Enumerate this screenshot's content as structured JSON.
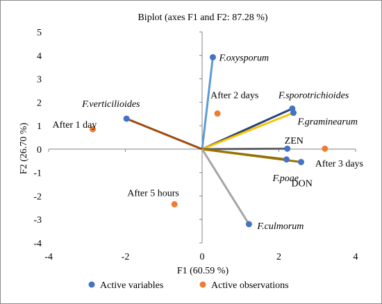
{
  "chart_data": {
    "type": "scatter",
    "title": "Biplot (axes F1 and F2: 87.28 %)",
    "xlabel": "F1 (60.59 %)",
    "ylabel": "F2 (26.70 %)",
    "xlim": [
      -4,
      4
    ],
    "ylim": [
      -4,
      5
    ],
    "xticks": [
      "-4",
      "-2",
      "0",
      "2",
      "4"
    ],
    "yticks": [
      "-4",
      "-3",
      "-2",
      "-1",
      "0",
      "1",
      "2",
      "3",
      "4",
      "5"
    ],
    "grid": false,
    "legend_position": "bottom",
    "legend": [
      {
        "name": "Active variables",
        "color": "#4472C4"
      },
      {
        "name": "Active observations",
        "color": "#ED7D31"
      }
    ],
    "variables": [
      {
        "label": "F.oxysporum",
        "x": 0.28,
        "y": 3.92,
        "line_color": "#5B9BD5",
        "italic": true
      },
      {
        "label": "F.sporotrichioides",
        "x": 2.35,
        "y": 1.73,
        "line_color": "#264478",
        "italic": true
      },
      {
        "label": "F.graminearum",
        "x": 2.38,
        "y": 1.55,
        "line_color": "#FFC000",
        "italic": true
      },
      {
        "label": "F.verticilioides",
        "x": -1.97,
        "y": 1.3,
        "line_color": "#9E480E",
        "italic": true
      },
      {
        "label": "ZEN",
        "x": 2.22,
        "y": 0.02,
        "line_color": "#636363",
        "italic": false
      },
      {
        "label": "F.poae",
        "x": 2.2,
        "y": -0.44,
        "line_color": "#7F6000",
        "italic": true
      },
      {
        "label": "DON",
        "x": 2.58,
        "y": -0.55,
        "line_color": "#997300",
        "italic": false
      },
      {
        "label": "F.culmorum",
        "x": 1.22,
        "y": -3.2,
        "line_color": "#A5A5A5",
        "italic": true
      }
    ],
    "observations": [
      {
        "label": "After 2 days",
        "x": 0.4,
        "y": 1.52
      },
      {
        "label": "After 1 day",
        "x": -2.85,
        "y": 0.85
      },
      {
        "label": "After 3 days",
        "x": 3.2,
        "y": 0.02
      },
      {
        "label": "After 5 hours",
        "x": -0.72,
        "y": -2.35
      }
    ]
  }
}
